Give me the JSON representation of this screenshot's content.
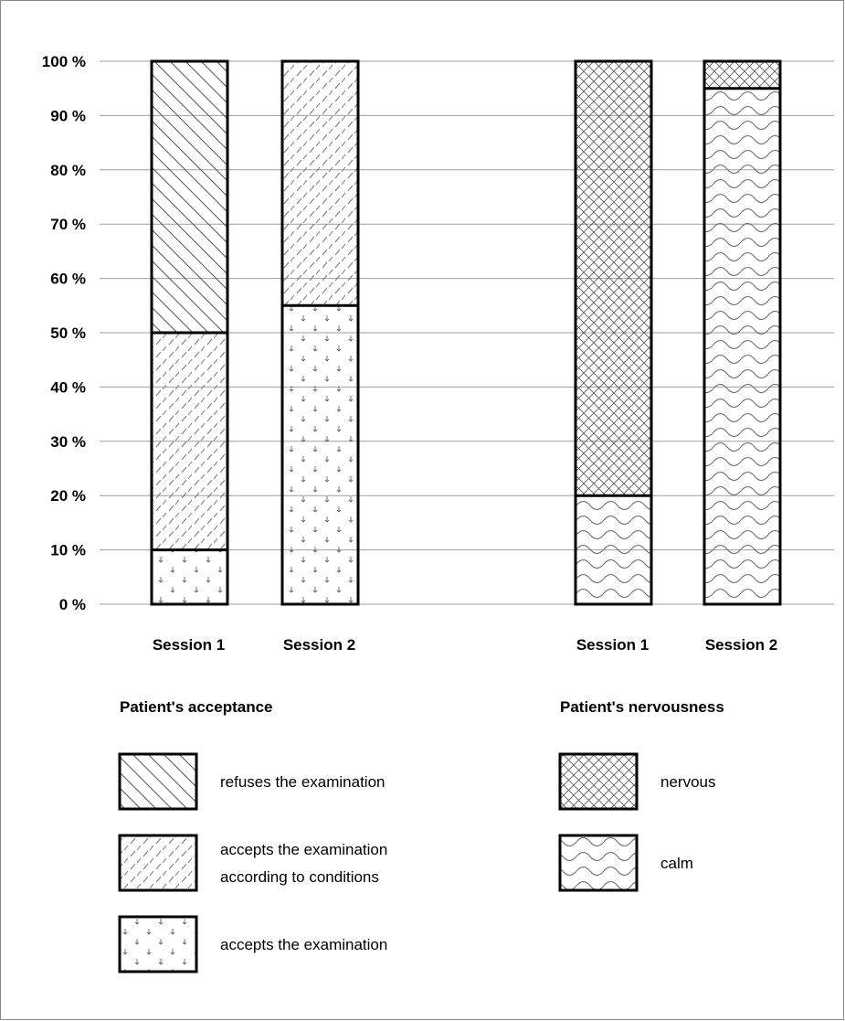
{
  "chart_data": {
    "type": "bar",
    "stacked": true,
    "percent": true,
    "ylim": [
      0,
      100
    ],
    "yticks": [
      "0 %",
      "10 %",
      "20 %",
      "30 %",
      "40 %",
      "50 %",
      "60 %",
      "70 %",
      "80 %",
      "90 %",
      "100 %"
    ],
    "grid": true,
    "groups": [
      {
        "title": "Patient's acceptance",
        "categories": [
          "Session 1",
          "Session 2"
        ],
        "series": [
          {
            "name": "accepts the examination",
            "pattern": "arrows",
            "values": [
              10,
              55
            ]
          },
          {
            "name": "accepts the examination according to conditions",
            "pattern": "dashes",
            "values": [
              40,
              45
            ]
          },
          {
            "name": "refuses the examination",
            "pattern": "diagonal",
            "values": [
              50,
              0
            ]
          }
        ],
        "legend": [
          {
            "pattern": "diagonal",
            "lines": [
              "refuses the examination"
            ]
          },
          {
            "pattern": "dashes",
            "lines": [
              "accepts the examination",
              "according to conditions"
            ]
          },
          {
            "pattern": "arrows",
            "lines": [
              "accepts the examination"
            ]
          }
        ]
      },
      {
        "title": "Patient's nervousness",
        "categories": [
          "Session 1",
          "Session 2"
        ],
        "series": [
          {
            "name": "calm",
            "pattern": "waves",
            "values": [
              20,
              95
            ]
          },
          {
            "name": "nervous",
            "pattern": "crosshatch",
            "values": [
              80,
              5
            ]
          }
        ],
        "legend": [
          {
            "pattern": "crosshatch",
            "lines": [
              "nervous"
            ]
          },
          {
            "pattern": "waves",
            "lines": [
              "calm"
            ]
          }
        ]
      }
    ],
    "colors": {
      "stroke": "#000000",
      "grid": "#9e9e9e",
      "hatch": "#7a7a7a"
    }
  }
}
